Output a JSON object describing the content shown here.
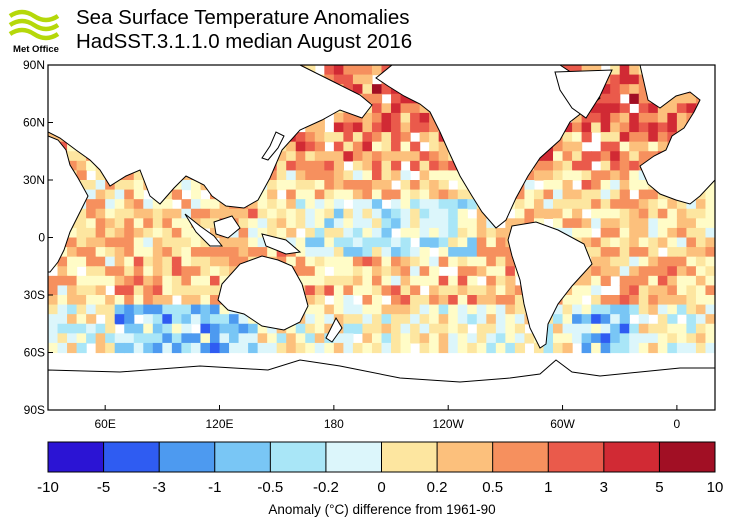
{
  "header": {
    "logo_text": "Met Office",
    "title": "Sea Surface Temperature Anomalies",
    "subtitle": "HadSST.3.1.1.0 median August 2016"
  },
  "map": {
    "lat_labels": [
      "90N",
      "60N",
      "30N",
      "0",
      "30S",
      "60S",
      "90S"
    ],
    "lon_labels": [
      "60E",
      "120E",
      "180",
      "120W",
      "60W",
      "0"
    ],
    "lat_range": [
      -90,
      90
    ],
    "lon_range": [
      30,
      380
    ]
  },
  "colorbar": {
    "ticks": [
      "-10",
      "-5",
      "-3",
      "-1",
      "-0.5",
      "-0.2",
      "0",
      "0.2",
      "0.5",
      "1",
      "3",
      "5",
      "10"
    ],
    "colors": [
      "#2b14d4",
      "#2f5cf2",
      "#4d9af0",
      "#79c6f5",
      "#a9e6f7",
      "#dcf6fb",
      "#fffcc7",
      "#fde6a0",
      "#fcc07c",
      "#f6905e",
      "#ea5a4b",
      "#d12a34",
      "#a10f24"
    ],
    "label": "Anomaly (°C) difference from 1961-90"
  },
  "colors": {
    "land": "#ffffff",
    "missing": "#ffffff",
    "coast": "#000000"
  }
}
